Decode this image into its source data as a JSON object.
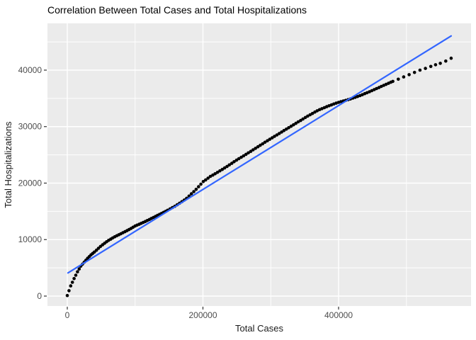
{
  "chart_data": {
    "type": "scatter",
    "title": "Correlation Between Total Cases and Total Hospitalizations",
    "xlabel": "Total Cases",
    "ylabel": "Total Hospitalizations",
    "xlim": [
      -29240,
      595310
    ],
    "ylim": [
      -1756,
      48275
    ],
    "grid": true,
    "legend": "none",
    "x_axis": {
      "tick_values": [
        0,
        200000,
        400000
      ],
      "tick_labels": [
        "0",
        "200000",
        "400000"
      ],
      "minor_ticks": [
        100000,
        300000,
        500000
      ]
    },
    "y_axis": {
      "tick_values": [
        0,
        10000,
        20000,
        30000,
        40000
      ],
      "tick_labels": [
        "0",
        "10000",
        "20000",
        "30000",
        "40000"
      ],
      "minor_ticks": [
        5000,
        15000,
        25000,
        35000,
        45000
      ]
    },
    "colors": {
      "point": "#000000",
      "line": "#3366FF",
      "panel_bg": "#EBEBEB",
      "grid": "#FFFFFF",
      "tick": "#333333",
      "tick_label": "#4D4D4D"
    },
    "regression_line": {
      "x": [
        1000,
        566000
      ],
      "y": [
        4100,
        46050
      ]
    },
    "points": [
      [
        0,
        100
      ],
      [
        2500,
        950
      ],
      [
        5000,
        1800
      ],
      [
        7500,
        2450
      ],
      [
        10000,
        3100
      ],
      [
        12500,
        3700
      ],
      [
        15000,
        4300
      ],
      [
        17500,
        4800
      ],
      [
        20000,
        5300
      ],
      [
        22500,
        5650
      ],
      [
        25000,
        6000
      ],
      [
        27500,
        6350
      ],
      [
        30000,
        6700
      ],
      [
        32500,
        7000
      ],
      [
        35000,
        7300
      ],
      [
        37500,
        7550
      ],
      [
        40000,
        7800
      ],
      [
        43000,
        8130
      ],
      [
        46000,
        8460
      ],
      [
        49000,
        8790
      ],
      [
        52000,
        9080
      ],
      [
        55000,
        9350
      ],
      [
        58000,
        9620
      ],
      [
        61000,
        9870
      ],
      [
        64000,
        10080
      ],
      [
        67000,
        10290
      ],
      [
        70000,
        10500
      ],
      [
        73000,
        10680
      ],
      [
        76000,
        10860
      ],
      [
        79000,
        11040
      ],
      [
        82000,
        11220
      ],
      [
        85000,
        11400
      ],
      [
        88000,
        11580
      ],
      [
        91000,
        11770
      ],
      [
        94000,
        11980
      ],
      [
        97000,
        12190
      ],
      [
        100000,
        12400
      ],
      [
        103000,
        12560
      ],
      [
        106000,
        12720
      ],
      [
        109000,
        12880
      ],
      [
        112000,
        13040
      ],
      [
        115000,
        13200
      ],
      [
        118000,
        13380
      ],
      [
        121000,
        13560
      ],
      [
        124000,
        13740
      ],
      [
        127000,
        13920
      ],
      [
        130000,
        14100
      ],
      [
        133000,
        14280
      ],
      [
        136000,
        14460
      ],
      [
        139000,
        14640
      ],
      [
        142000,
        14820
      ],
      [
        145000,
        15000
      ],
      [
        148000,
        15200
      ],
      [
        151500,
        15430
      ],
      [
        155000,
        15670
      ],
      [
        158500,
        15900
      ],
      [
        162000,
        16160
      ],
      [
        165500,
        16440
      ],
      [
        169000,
        16720
      ],
      [
        172500,
        17000
      ],
      [
        176000,
        17310
      ],
      [
        179500,
        17710
      ],
      [
        183000,
        18110
      ],
      [
        186500,
        18500
      ],
      [
        190000,
        18900
      ],
      [
        193500,
        19360
      ],
      [
        197000,
        19810
      ],
      [
        200500,
        20270
      ],
      [
        204000,
        20560
      ],
      [
        207500,
        20880
      ],
      [
        211000,
        21190
      ],
      [
        214500,
        21420
      ],
      [
        218000,
        21660
      ],
      [
        221500,
        21910
      ],
      [
        225000,
        22170
      ],
      [
        228500,
        22420
      ],
      [
        232000,
        22680
      ],
      [
        235500,
        22940
      ],
      [
        239000,
        23220
      ],
      [
        242500,
        23500
      ],
      [
        246000,
        23780
      ],
      [
        249500,
        24060
      ],
      [
        253000,
        24320
      ],
      [
        256500,
        24580
      ],
      [
        260000,
        24830
      ],
      [
        263500,
        25090
      ],
      [
        267000,
        25350
      ],
      [
        270500,
        25620
      ],
      [
        274000,
        25890
      ],
      [
        277500,
        26160
      ],
      [
        281000,
        26430
      ],
      [
        284500,
        26700
      ],
      [
        288000,
        26960
      ],
      [
        291500,
        27230
      ],
      [
        295000,
        27500
      ],
      [
        298500,
        27760
      ],
      [
        302000,
        28010
      ],
      [
        305500,
        28270
      ],
      [
        309000,
        28530
      ],
      [
        312500,
        28780
      ],
      [
        316000,
        29040
      ],
      [
        319500,
        29300
      ],
      [
        323000,
        29550
      ],
      [
        326500,
        29810
      ],
      [
        330000,
        30070
      ],
      [
        333500,
        30320
      ],
      [
        337000,
        30580
      ],
      [
        340500,
        30840
      ],
      [
        344000,
        31090
      ],
      [
        347500,
        31350
      ],
      [
        351000,
        31610
      ],
      [
        354500,
        31860
      ],
      [
        358000,
        32100
      ],
      [
        361500,
        32330
      ],
      [
        365000,
        32570
      ],
      [
        368500,
        32800
      ],
      [
        372000,
        33000
      ],
      [
        375500,
        33180
      ],
      [
        379000,
        33350
      ],
      [
        382500,
        33530
      ],
      [
        386000,
        33690
      ],
      [
        389500,
        33840
      ],
      [
        393000,
        34000
      ],
      [
        396500,
        34150
      ],
      [
        400000,
        34300
      ],
      [
        403500,
        34420
      ],
      [
        407000,
        34530
      ],
      [
        410500,
        34650
      ],
      [
        414000,
        34770
      ],
      [
        417500,
        34900
      ],
      [
        421000,
        35040
      ],
      [
        424500,
        35180
      ],
      [
        428000,
        35320
      ],
      [
        431500,
        35480
      ],
      [
        435000,
        35650
      ],
      [
        438500,
        35830
      ],
      [
        442000,
        36000
      ],
      [
        445500,
        36180
      ],
      [
        449000,
        36360
      ],
      [
        452500,
        36550
      ],
      [
        456000,
        36740
      ],
      [
        459500,
        36920
      ],
      [
        463000,
        37110
      ],
      [
        466500,
        37300
      ],
      [
        470000,
        37480
      ],
      [
        473500,
        37670
      ],
      [
        477000,
        37860
      ],
      [
        480000,
        38000
      ],
      [
        488000,
        38400
      ],
      [
        496000,
        38800
      ],
      [
        504000,
        39200
      ],
      [
        512000,
        39600
      ],
      [
        520000,
        40000
      ],
      [
        528000,
        40300
      ],
      [
        536000,
        40650
      ],
      [
        543000,
        40950
      ],
      [
        550000,
        41200
      ],
      [
        558000,
        41600
      ],
      [
        566000,
        42100
      ]
    ]
  }
}
